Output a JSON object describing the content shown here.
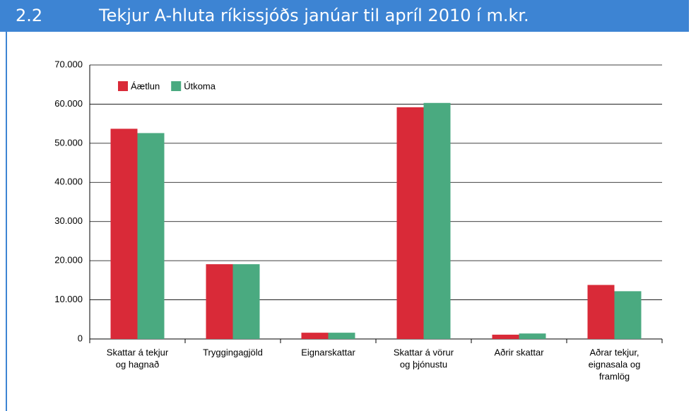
{
  "header": {
    "number": "2.2",
    "title": "Tekjur A-hluta ríkissjóðs janúar til apríl 2010 í m.kr."
  },
  "chart_data": {
    "type": "bar",
    "categories": [
      [
        "Skattar á tekjur",
        "og hagnað"
      ],
      [
        "Tryggingagjöld"
      ],
      [
        "Eignarskattar"
      ],
      [
        "Skattar á vörur",
        "og þjónustu"
      ],
      [
        "Aðrir skattar"
      ],
      [
        "Aðrar tekjur,",
        "eignasala og",
        "framlög"
      ]
    ],
    "series": [
      {
        "name": "Áætlun",
        "color": "#d92a38",
        "values": [
          53700,
          19100,
          1600,
          59200,
          1100,
          13800
        ]
      },
      {
        "name": "Útkoma",
        "color": "#4aaa80",
        "values": [
          52600,
          19100,
          1600,
          60300,
          1400,
          12200
        ]
      }
    ],
    "ylim": [
      0,
      70000
    ],
    "yticks": [
      0,
      {
        "value": 10000,
        "label": "10.000"
      },
      {
        "value": 20000,
        "label": "20.000"
      },
      {
        "value": 30000,
        "label": "30.000"
      },
      {
        "value": 40000,
        "label": "40.000"
      },
      {
        "value": 50000,
        "label": "50.000"
      },
      {
        "value": 60000,
        "label": "60.000"
      },
      {
        "value": 70000,
        "label": "70.000"
      }
    ],
    "grid": true,
    "legend": "top-left"
  }
}
